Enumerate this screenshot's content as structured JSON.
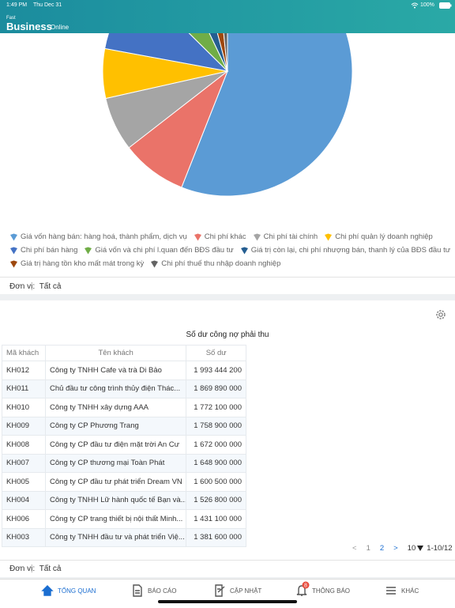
{
  "status_bar": {
    "time": "1:49 PM",
    "date": "Thu Dec 31",
    "battery": "100%"
  },
  "header": {
    "logo_small": "Fast",
    "logo_main": "Business",
    "logo_suffix": "Online"
  },
  "chart_data": {
    "type": "pie",
    "categories": [
      "Giá vốn hàng bán: hàng hoá, thành phẩm, dịch vụ",
      "Chi phí khác",
      "Chi phí tài chính",
      "Chi phí quản lý doanh nghiệp",
      "Chi phí bán hàng",
      "Giá vốn và chi phí l.quan đến BĐS đầu tư",
      "Giá trị còn lại, chi phí nhượng bán, thanh lý của BĐS đầu tư",
      "Giá trị hàng tồn kho mất mát trong kỳ",
      "Chi phí thuế thu nhập doanh nghiệp"
    ],
    "values": [
      56,
      8.5,
      7,
      6.4,
      9.5,
      5.5,
      3,
      2.5,
      1.6
    ],
    "colors": [
      "#5b9bd5",
      "#ea7369",
      "#a5a5a5",
      "#ffc000",
      "#4472c4",
      "#70ad47",
      "#255e91",
      "#9e480e",
      "#636363"
    ],
    "legend": "bottom"
  },
  "chart_unit": {
    "label": "Đơn vị:",
    "value": "Tất cả"
  },
  "table": {
    "title": "Số dư công nợ phải thu",
    "columns": [
      "Mã khách",
      "Tên khách",
      "Số dư"
    ],
    "rows": [
      [
        "KH012",
        "Công ty TNHH Cafe và trà Di Bảo",
        "1 993 444 200"
      ],
      [
        "KH011",
        "Chủ đầu tư công trình thủy điện Thác...",
        "1 869 890 000"
      ],
      [
        "KH010",
        "Công ty TNHH xây dựng AAA",
        "1 772 100 000"
      ],
      [
        "KH009",
        "Công ty CP Phương Trang",
        "1 758 900 000"
      ],
      [
        "KH008",
        "Công ty CP đầu tư điện mặt trời An Cư",
        "1 672 000 000"
      ],
      [
        "KH007",
        "Công ty CP thương mại Toàn Phát",
        "1 648 900 000"
      ],
      [
        "KH005",
        "Công ty CP đầu tư phát triển Dream VN",
        "1 600 500 000"
      ],
      [
        "KH004",
        "Công ty TNHH Lữ hành quốc tế Bạn và...",
        "1 526 800 000"
      ],
      [
        "KH006",
        "Công ty CP trang thiết bị nội thất Minh...",
        "1 431 100 000"
      ],
      [
        "KH003",
        "Công ty TNHH đầu tư và phát triển Việ...",
        "1 381 600 000"
      ]
    ],
    "pagination": {
      "prev": "<",
      "pages": [
        "1",
        "2"
      ],
      "next": ">",
      "page_size": "10",
      "range": "1-10/12"
    }
  },
  "table_unit": {
    "label": "Đơn vị:",
    "value": "Tất cả"
  },
  "nav": {
    "items": [
      "TỔNG QUAN",
      "BÁO CÁO",
      "CẬP NHẬT",
      "THÔNG BÁO",
      "KHÁC"
    ],
    "badge": "8"
  }
}
